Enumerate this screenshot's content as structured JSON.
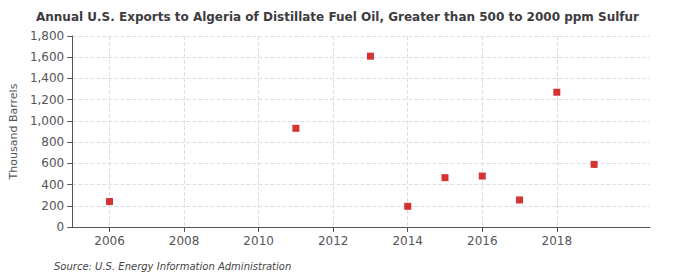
{
  "chart_data": {
    "type": "scatter",
    "title": "Annual U.S. Exports to Algeria of Distillate Fuel Oil, Greater than 500 to 2000 ppm Sulfur",
    "ylabel": "Thousand Barrels",
    "annotations": [
      "Source: U.S. Energy Information Administration"
    ],
    "x": [
      2006,
      2011,
      2013,
      2014,
      2015,
      2016,
      2017,
      2018,
      2019
    ],
    "values": [
      240,
      930,
      1610,
      195,
      465,
      480,
      255,
      1270,
      590
    ],
    "color": "#cc0000",
    "marker": "square",
    "xlim": [
      2005.0,
      2020.5
    ],
    "xticks": [
      2006,
      2008,
      2010,
      2012,
      2014,
      2016,
      2018
    ],
    "ylim": [
      0,
      1800
    ],
    "yticks": [
      0,
      200,
      400,
      600,
      800,
      {
        "value": 1000,
        "label": "1,000"
      },
      {
        "value": 1200,
        "label": "1,200"
      },
      {
        "value": 1400,
        "label": "1,400"
      },
      {
        "value": 1600,
        "label": "1,600"
      },
      {
        "value": 1800,
        "label": "1,800"
      }
    ],
    "grid": true
  }
}
